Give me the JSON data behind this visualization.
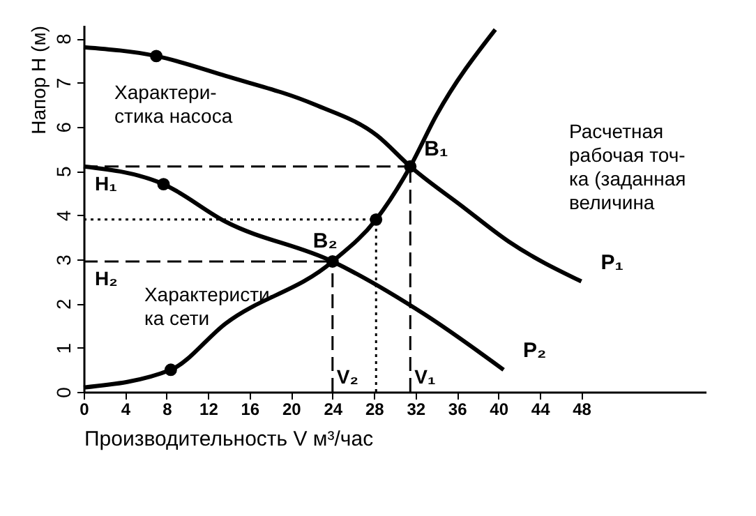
{
  "chart_data": {
    "type": "line",
    "xlabel": "Производительность V м³/час",
    "ylabel": "Напор H (м)",
    "xlim": [
      0,
      60
    ],
    "xticks": [
      0,
      4,
      8,
      12,
      16,
      20,
      24,
      28,
      32,
      36,
      40,
      44,
      48
    ],
    "ylim": [
      0,
      8.3
    ],
    "yticks": [
      0,
      1,
      2,
      3,
      4,
      5,
      6,
      7,
      8
    ],
    "grid": false,
    "marker": "none",
    "line_style": "solid",
    "series": [
      {
        "name": "P₁",
        "color": "#000000",
        "x": [
          0,
          7,
          13.7,
          22.3,
          28.3,
          31.5,
          36.5,
          41,
          48
        ],
        "values": [
          7.8,
          7.6,
          7.15,
          6.5,
          5.8,
          5.1,
          4.2,
          3.4,
          2.5
        ]
      },
      {
        "name": "P₂",
        "color": "#000000",
        "x": [
          0,
          7.7,
          13.7,
          24,
          32.9,
          40.5
        ],
        "values": [
          5.1,
          4.7,
          3.85,
          2.95,
          1.75,
          0.5
        ]
      },
      {
        "color": "#000000",
        "x": [
          0,
          8.4,
          13.7,
          24,
          28.2,
          31.5,
          34,
          39.7
        ],
        "values": [
          0.1,
          0.5,
          1.55,
          2.95,
          3.9,
          5.1,
          6.25,
          8.2
        ]
      },
      {
        "type": "scatter",
        "marker": "circle",
        "color": "#000000",
        "x": [
          7,
          7.7,
          8.4,
          24,
          28.2,
          31.5
        ],
        "values": [
          7.6,
          4.7,
          0.5,
          2.95,
          3.9,
          5.1
        ]
      }
    ],
    "ref_lines": [
      {
        "axis": "y",
        "value": 5.1,
        "label": "H₁",
        "line_style": "dashed",
        "color": "#000000"
      },
      {
        "axis": "x",
        "value": 31.5,
        "label": "V₁",
        "line_style": "dashed",
        "color": "#000000"
      },
      {
        "axis": "y",
        "value": 2.95,
        "label": "H₂",
        "line_style": "dashed",
        "color": "#000000"
      },
      {
        "axis": "x",
        "value": 24,
        "label": "V₂",
        "line_style": "dashed",
        "color": "#000000"
      },
      {
        "axis": "y",
        "value": 3.9,
        "label": null,
        "line_style": "dotted",
        "color": "#000000"
      },
      {
        "axis": "x",
        "value": 28.2,
        "label": null,
        "line_style": "dotted",
        "color": "#000000"
      }
    ],
    "annotations": [
      {
        "text": "B₁",
        "x": 31.5,
        "y": 5.1
      },
      {
        "text": "B₂",
        "x": 24,
        "y": 2.95
      },
      {
        "text": "Характери-\nстика насоса",
        "x": 7,
        "y": 7.6
      },
      {
        "text": "Характеристи-\nка сети",
        "x": 8.4,
        "y": 0.5
      },
      "Расчетная\nрабочая точ-\nка (заданная\nвеличина"
    ]
  }
}
